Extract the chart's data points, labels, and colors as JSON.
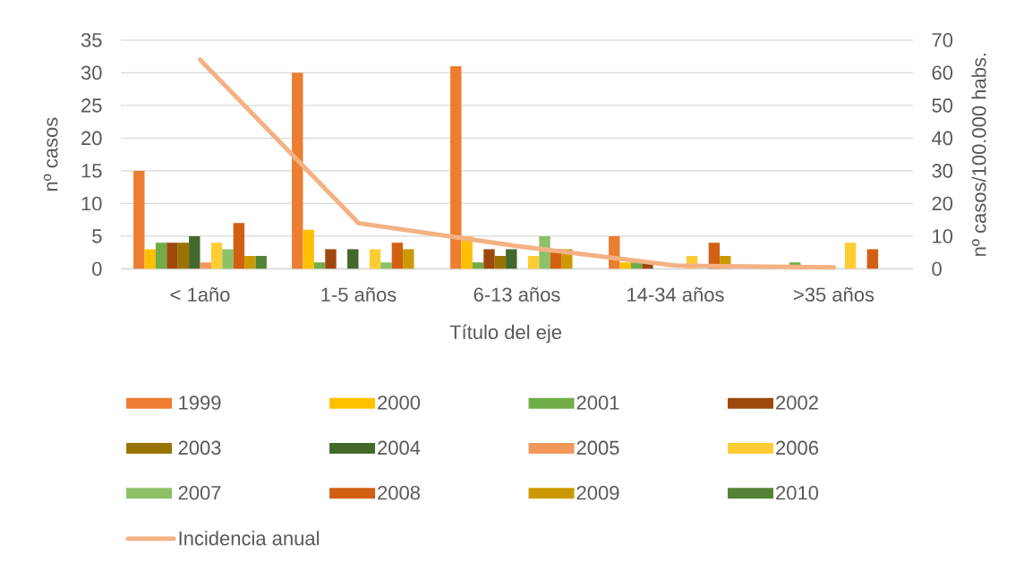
{
  "chart_data": {
    "type": "bar",
    "xlabel": "Título del eje",
    "ylabel": "nº casos",
    "y2label": "nº casos/100.000 habs.",
    "categories": [
      "< 1año",
      "1-5 años",
      "6-13 años",
      "14-34 años",
      ">35 años"
    ],
    "series": [
      {
        "name": "1999",
        "color": "#ed7d31",
        "values": [
          15,
          30,
          31,
          5,
          0
        ]
      },
      {
        "name": "2000",
        "color": "#ffc000",
        "values": [
          3,
          6,
          5,
          1,
          0
        ]
      },
      {
        "name": "2001",
        "color": "#70ad47",
        "values": [
          4,
          1,
          1,
          1,
          1
        ]
      },
      {
        "name": "2002",
        "color": "#9e480e",
        "values": [
          4,
          3,
          3,
          1,
          0
        ]
      },
      {
        "name": "2003",
        "color": "#997300",
        "values": [
          4,
          0,
          2,
          0,
          0
        ]
      },
      {
        "name": "2004",
        "color": "#43682b",
        "values": [
          5,
          3,
          3,
          0,
          0
        ]
      },
      {
        "name": "2005",
        "color": "#f1975a",
        "values": [
          1,
          0,
          0,
          0,
          0
        ]
      },
      {
        "name": "2006",
        "color": "#ffcd33",
        "values": [
          4,
          3,
          2,
          2,
          4
        ]
      },
      {
        "name": "2007",
        "color": "#8cc168",
        "values": [
          3,
          1,
          5,
          0,
          0
        ]
      },
      {
        "name": "2008",
        "color": "#d26012",
        "values": [
          7,
          4,
          3,
          4,
          3
        ]
      },
      {
        "name": "2009",
        "color": "#cc9a00",
        "values": [
          2,
          3,
          3,
          2,
          0
        ]
      },
      {
        "name": "2010",
        "color": "#548235",
        "values": [
          2,
          0,
          0,
          0,
          0
        ]
      },
      {
        "name": "Incidencia anual",
        "type": "line",
        "axis": "y2",
        "color": "#f4b183",
        "values": [
          64,
          14,
          7,
          1,
          0.5
        ]
      }
    ],
    "ylim": [
      0,
      35
    ],
    "yticks": [
      0,
      5,
      10,
      15,
      20,
      25,
      30,
      35
    ],
    "y2lim": [
      0,
      70
    ],
    "y2ticks": [
      0,
      10,
      20,
      30,
      40,
      50,
      60,
      70
    ],
    "grid": "y",
    "legend": "bottom",
    "marker": "none"
  }
}
